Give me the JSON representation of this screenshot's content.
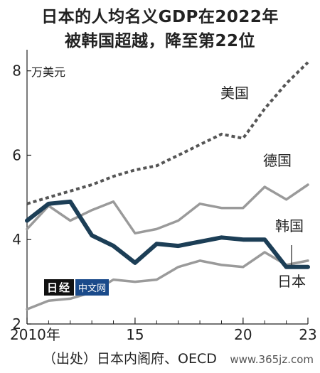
{
  "title_line1": "日本的人均名义GDP在2022年",
  "title_line2": "被韩国超越，降至第22位",
  "source": "（出处）日本内阁府、OECD",
  "watermark": "www.365jz.com",
  "logo": {
    "mark": "日经",
    "text": "中文网"
  },
  "chart_data": {
    "type": "line",
    "ylabel": "万美元",
    "ylim": [
      2,
      8.5
    ],
    "yticks": [
      2,
      4,
      6,
      8
    ],
    "xlim": [
      2010,
      2023
    ],
    "xticks": [
      {
        "value": 2010,
        "label": "2010年"
      },
      {
        "value": 2015,
        "label": "15"
      },
      {
        "value": 2020,
        "label": "20"
      },
      {
        "value": 2023,
        "label": "23"
      }
    ],
    "grid": false,
    "x": [
      2010,
      2011,
      2012,
      2013,
      2014,
      2015,
      2016,
      2017,
      2018,
      2019,
      2020,
      2021,
      2022,
      2023
    ],
    "series": [
      {
        "name": "美国",
        "color": "#555555",
        "style": "dotted",
        "width": 4,
        "values": [
          4.85,
          5.0,
          5.15,
          5.3,
          5.5,
          5.65,
          5.75,
          6.0,
          6.25,
          6.5,
          6.4,
          7.1,
          7.7,
          8.2
        ]
      },
      {
        "name": "德国",
        "color": "#9a9a9a",
        "style": "solid",
        "width": 3.5,
        "values": [
          4.25,
          4.8,
          4.45,
          4.7,
          4.9,
          4.15,
          4.25,
          4.45,
          4.85,
          4.75,
          4.75,
          5.25,
          4.95,
          5.3
        ]
      },
      {
        "name": "韩国",
        "color": "#9a9a9a",
        "style": "solid",
        "width": 3.5,
        "values": [
          2.35,
          2.55,
          2.6,
          2.75,
          3.05,
          3.0,
          3.05,
          3.35,
          3.5,
          3.4,
          3.35,
          3.7,
          3.4,
          3.5
        ]
      },
      {
        "name": "日本",
        "color": "#1c3e56",
        "style": "solid",
        "width": 6,
        "values": [
          4.45,
          4.85,
          4.9,
          4.1,
          3.85,
          3.45,
          3.9,
          3.85,
          3.95,
          4.05,
          4.0,
          4.0,
          3.35,
          3.35
        ]
      }
    ],
    "labels": [
      {
        "series": "美国",
        "text": "美国"
      },
      {
        "series": "德国",
        "text": "德国"
      },
      {
        "series": "韩国",
        "text": "韩国"
      },
      {
        "series": "日本",
        "text": "日本"
      }
    ]
  }
}
